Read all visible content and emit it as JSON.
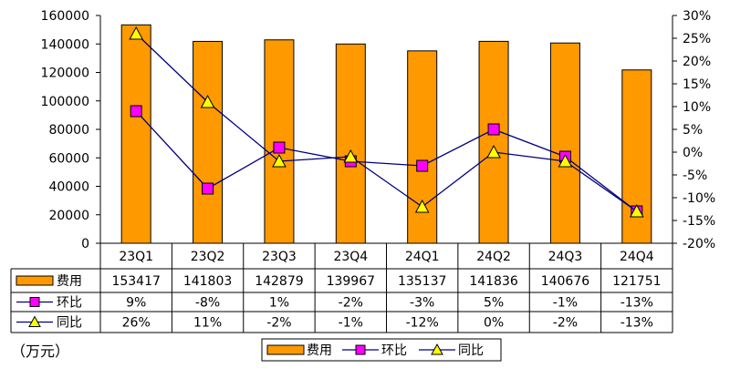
{
  "chart_data": {
    "type": "bar",
    "categories": [
      "23Q1",
      "23Q2",
      "23Q3",
      "23Q4",
      "24Q1",
      "24Q2",
      "24Q3",
      "24Q4"
    ],
    "series": [
      {
        "name": "费用",
        "kind": "bar",
        "axis": "left",
        "color": "#FF9900",
        "values": [
          153417,
          141803,
          142879,
          139967,
          135137,
          141836,
          140676,
          121751
        ],
        "labels": [
          "153417",
          "141803",
          "142879",
          "139967",
          "135137",
          "141836",
          "140676",
          "121751"
        ]
      },
      {
        "name": "环比",
        "kind": "line",
        "axis": "right",
        "marker": "square",
        "color": "#FF00FF",
        "values": [
          9,
          -8,
          1,
          -2,
          -3,
          5,
          -1,
          -13
        ],
        "labels": [
          "9%",
          "-8%",
          "1%",
          "-2%",
          "-3%",
          "5%",
          "-1%",
          "-13%"
        ]
      },
      {
        "name": "同比",
        "kind": "line",
        "axis": "right",
        "marker": "triangle",
        "color": "#FFFF00",
        "values": [
          26,
          11,
          -2,
          -1,
          -12,
          0,
          -2,
          -13
        ],
        "labels": [
          "26%",
          "11%",
          "-2%",
          "-1%",
          "-12%",
          "0%",
          "-2%",
          "-13%"
        ]
      }
    ],
    "ylim_left": [
      0,
      160000
    ],
    "yticks_left": [
      "0",
      "20000",
      "40000",
      "60000",
      "80000",
      "100000",
      "120000",
      "140000",
      "160000"
    ],
    "ylim_right": [
      -20,
      30
    ],
    "yticks_right": [
      "-20%",
      "-15%",
      "-10%",
      "-5%",
      "0%",
      "5%",
      "10%",
      "15%",
      "20%",
      "25%",
      "30%"
    ],
    "unit_label": "（万元）",
    "legend_position": "bottom-center",
    "data_table": true,
    "grid": false
  }
}
